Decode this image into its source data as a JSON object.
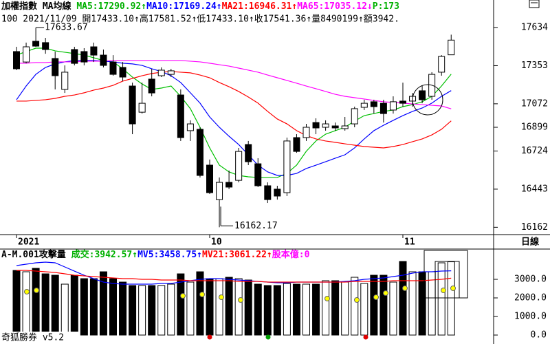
{
  "chart_data": [
    {
      "type": "candlestick",
      "title_segments": [
        {
          "text": "加權指數 MA均線 ",
          "color": "#000000"
        },
        {
          "text": "MA5:17290.92↑",
          "color": "#00b000"
        },
        {
          "text": "MA10:17169.24↑",
          "color": "#0000ff"
        },
        {
          "text": "MA21:16946.31↑",
          "color": "#ff0000"
        },
        {
          "text": "MA65:17035.12↓",
          "color": "#ff00ff"
        },
        {
          "text": "P:173",
          "color": "#00b000"
        }
      ],
      "subtitle": "100 2021/11/09 開17433.10↑高17581.52↑低17433.10↑收17541.36↑量8490199↑額3942.",
      "annotations": [
        "17633.67",
        "16162.17"
      ],
      "period_label": "日線",
      "categories": [
        "2021",
        null,
        null,
        null,
        null,
        null,
        null,
        null,
        null,
        null,
        null,
        null,
        null,
        null,
        null,
        null,
        null,
        null,
        null,
        null,
        "10",
        null,
        null,
        null,
        null,
        null,
        null,
        null,
        null,
        null,
        null,
        null,
        null,
        null,
        null,
        null,
        null,
        null,
        null,
        null,
        "11",
        null,
        null,
        null,
        null,
        null
      ],
      "open": [
        17457,
        17380,
        17533,
        17523,
        17406,
        17178,
        17472,
        17457,
        17492,
        17431,
        17380,
        17340,
        17203,
        17010,
        17254,
        17279,
        17289,
        17137,
        16874,
        16884,
        16620,
        16366,
        16493,
        16508,
        16772,
        16630,
        16468,
        16443,
        16417,
        16823,
        16823,
        16934,
        16899,
        16909,
        16889,
        16924,
        17046,
        17087,
        17076,
        17026,
        17092,
        17092,
        17168,
        17127,
        17305,
        17433.1
      ],
      "high": [
        17492,
        17523,
        17633.67,
        17558,
        17457,
        17355,
        17492,
        17482,
        17523,
        17472,
        17431,
        17380,
        17228,
        17228,
        17330,
        17340,
        17330,
        17178,
        16950,
        16899,
        16661,
        16529,
        16580,
        16747,
        16798,
        16671,
        16493,
        16468,
        16823,
        16848,
        16924,
        16965,
        16950,
        16934,
        16975,
        17051,
        17102,
        17102,
        17102,
        17127,
        17228,
        17152,
        17203,
        17305,
        17431,
        17581.52
      ],
      "low": [
        17320,
        17370,
        17492,
        17441,
        17178,
        17152,
        17355,
        17355,
        17380,
        17340,
        17279,
        17238,
        16848,
        17000,
        17127,
        17269,
        17269,
        16798,
        16798,
        16529,
        16407,
        16162.17,
        16443,
        16493,
        16620,
        16458,
        16341,
        16366,
        16392,
        16711,
        16798,
        16848,
        16874,
        16874,
        16874,
        16899,
        17026,
        17000,
        16934,
        17000,
        17051,
        17051,
        17076,
        17102,
        17279,
        17433.1
      ],
      "close": [
        17330,
        17492,
        17497,
        17472,
        17279,
        17305,
        17370,
        17380,
        17431,
        17355,
        17289,
        17269,
        16924,
        17076,
        17152,
        17320,
        17315,
        16823,
        16924,
        16544,
        16417,
        16493,
        16458,
        16721,
        16645,
        16468,
        16366,
        16392,
        16798,
        16721,
        16899,
        16894,
        16924,
        16894,
        16909,
        17036,
        17076,
        17051,
        17000,
        17087,
        17076,
        17127,
        17102,
        17289,
        17421,
        17541.36
      ],
      "up_color": "#ffffff",
      "down_color": "#000000",
      "ylim": [
        16113,
        17837
      ],
      "yticks": [
        17634,
        17353,
        17072,
        16899,
        16724,
        16443,
        16162
      ],
      "series": [
        {
          "name": "MA5",
          "color": "#00c000",
          "values": [
            17431,
            17457,
            17482,
            17482,
            17462,
            17452,
            17442,
            17431,
            17411,
            17391,
            17381,
            17330,
            17269,
            17218,
            17178,
            17188,
            17203,
            17127,
            17036,
            16899,
            16747,
            16620,
            16570,
            16544,
            16534,
            16529,
            16529,
            16529,
            16559,
            16620,
            16722,
            16798,
            16848,
            16874,
            16899,
            16945,
            16985,
            17000,
            17016,
            17026,
            17051,
            17066,
            17087,
            17127,
            17203,
            17290.92
          ]
        },
        {
          "name": "MA10",
          "color": "#0000ff",
          "values": [
            17102,
            17203,
            17289,
            17340,
            17366,
            17381,
            17391,
            17391,
            17391,
            17386,
            17381,
            17371,
            17366,
            17355,
            17330,
            17310,
            17279,
            17229,
            17153,
            17077,
            16975,
            16899,
            16833,
            16772,
            16696,
            16620,
            16570,
            16544,
            16544,
            16559,
            16595,
            16620,
            16645,
            16671,
            16696,
            16747,
            16813,
            16874,
            16914,
            16950,
            16985,
            17016,
            17041,
            17077,
            17127,
            17169.24
          ]
        },
        {
          "name": "MA21",
          "color": "#ff0000",
          "values": [
            17092,
            17092,
            17097,
            17102,
            17112,
            17127,
            17137,
            17153,
            17173,
            17188,
            17208,
            17239,
            17259,
            17279,
            17295,
            17305,
            17310,
            17305,
            17300,
            17284,
            17264,
            17229,
            17198,
            17163,
            17122,
            17077,
            17016,
            16960,
            16924,
            16874,
            16838,
            16813,
            16798,
            16788,
            16777,
            16767,
            16757,
            16752,
            16747,
            16757,
            16772,
            16793,
            16813,
            16843,
            16884,
            16946.31
          ]
        },
        {
          "name": "MA65",
          "color": "#ff00ff",
          "values": [
            17371,
            17371,
            17376,
            17376,
            17381,
            17381,
            17381,
            17386,
            17386,
            17386,
            17391,
            17391,
            17391,
            17391,
            17391,
            17391,
            17391,
            17391,
            17386,
            17381,
            17371,
            17360,
            17350,
            17335,
            17320,
            17305,
            17284,
            17264,
            17244,
            17224,
            17203,
            17183,
            17163,
            17142,
            17127,
            17117,
            17107,
            17097,
            17087,
            17082,
            17077,
            17071,
            17066,
            17061,
            17056,
            17035.12
          ]
        }
      ]
    },
    {
      "type": "bar",
      "title_segments": [
        {
          "text": "A-M.001攻擊量 ",
          "color": "#000000"
        },
        {
          "text": "成交:3942.57↑",
          "color": "#00b000"
        },
        {
          "text": "MV5:3458.75↑",
          "color": "#0000ff"
        },
        {
          "text": "MV21:3061.22↑",
          "color": "#ff0000"
        },
        {
          "text": "股本億:0",
          "color": "#ff00ff"
        }
      ],
      "values": [
        3481,
        3407,
        3593,
        3296,
        3222,
        2741,
        3222,
        3037,
        3037,
        3407,
        3037,
        2852,
        2667,
        2667,
        2667,
        2667,
        2741,
        3296,
        2852,
        3407,
        3037,
        3037,
        3111,
        3037,
        2963,
        2741,
        2667,
        2667,
        2778,
        2741,
        2741,
        2741,
        2926,
        2926,
        2852,
        3111,
        2778,
        3222,
        3222,
        2852,
        3963,
        3407,
        3407,
        3407,
        3889,
        3942.57
      ],
      "ylim": [
        -111,
        4630
      ],
      "yticks": [
        {
          "value": 3000,
          "label": "3000.0"
        },
        {
          "value": 2000,
          "label": "2000.0"
        },
        {
          "value": 1000,
          "label": "1000.0"
        },
        {
          "value": 0,
          "label": "0.0"
        }
      ],
      "series": [
        {
          "name": "MV5",
          "color": "#0000ff",
          "values": [
            3741,
            3815,
            3889,
            3926,
            3889,
            3667,
            3444,
            3222,
            3037,
            2852,
            2778,
            2741,
            2741,
            2741,
            2741,
            2778,
            2778,
            2852,
            2926,
            3000,
            3037,
            3037,
            3000,
            2963,
            2926,
            2889,
            2852,
            2815,
            2815,
            2852,
            2852,
            2852,
            2852,
            2852,
            2889,
            2926,
            3000,
            3037,
            3074,
            3148,
            3222,
            3333,
            3407,
            3407,
            3444,
            3458.75
          ]
        },
        {
          "name": "MV21",
          "color": "#ff0000",
          "values": [
            3481,
            3481,
            3444,
            3407,
            3370,
            3296,
            3222,
            3185,
            3148,
            3111,
            3074,
            3037,
            3037,
            3000,
            3000,
            2963,
            2963,
            2963,
            2926,
            2926,
            2926,
            2926,
            2926,
            2889,
            2889,
            2889,
            2852,
            2852,
            2852,
            2852,
            2852,
            2852,
            2852,
            2852,
            2852,
            2889,
            2889,
            2889,
            2889,
            2926,
            2926,
            2926,
            2926,
            2963,
            3000,
            3061.22
          ]
        }
      ]
    }
  ],
  "footer": "奇狐勝券 v5.2"
}
